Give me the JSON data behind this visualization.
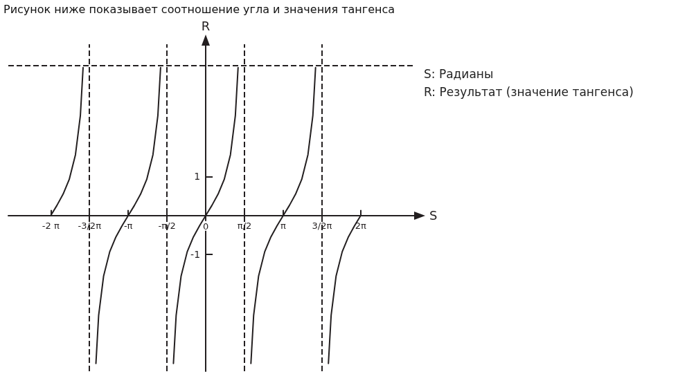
{
  "chart_data": {
    "type": "line",
    "title": "Рисунок ниже показывает соотношение угла и значения тангенса",
    "xlabel": "S",
    "ylabel": "R",
    "annotations": [
      "S: Радианы",
      "R: Результат (значение тангенса)"
    ],
    "xlim": [
      -8,
      8.5
    ],
    "ylim": [
      -4,
      4.4
    ],
    "xticks": [
      {
        "value": -6.28,
        "label": "-2 π"
      },
      {
        "value": -4.71,
        "label": "-3/2π"
      },
      {
        "value": -3.14,
        "label": "-π"
      },
      {
        "value": -1.57,
        "label": "-π/2"
      },
      {
        "value": 0,
        "label": "0"
      },
      {
        "value": 1.57,
        "label": "π/2"
      },
      {
        "value": 3.14,
        "label": "π"
      },
      {
        "value": 4.71,
        "label": "3/2π"
      },
      {
        "value": 6.28,
        "label": "2π"
      }
    ],
    "yticks": [
      -1,
      1
    ],
    "grid": false,
    "marker": "none",
    "line_style": "solid",
    "ref_lines": [
      {
        "axis": "y",
        "value": 3.85,
        "line_style": "dashed"
      },
      {
        "axis": "x",
        "value": -4.71,
        "line_style": "dashed"
      },
      {
        "axis": "x",
        "value": -1.57,
        "line_style": "dashed"
      },
      {
        "axis": "x",
        "value": 1.57,
        "line_style": "dashed"
      },
      {
        "axis": "x",
        "value": 4.71,
        "line_style": "dashed"
      }
    ],
    "series": [
      {
        "color": "#231f20",
        "x": [
          -6.28,
          -6.03,
          -5.78,
          -5.53,
          -5.28,
          -5.08,
          -4.97
        ],
        "values": [
          0,
          0.26,
          0.55,
          0.93,
          1.56,
          2.57,
          3.8
        ]
      },
      {
        "color": "#231f20",
        "x": [
          -4.45,
          -4.34,
          -4.14,
          -3.89,
          -3.64,
          -3.39,
          -3.14,
          -2.89,
          -2.64,
          -2.39,
          -2.14,
          -1.94,
          -1.83
        ],
        "values": [
          -3.8,
          -2.57,
          -1.56,
          -0.93,
          -0.55,
          -0.26,
          0,
          0.26,
          0.55,
          0.93,
          1.56,
          2.57,
          3.8
        ]
      },
      {
        "color": "#231f20",
        "x": [
          -1.31,
          -1.2,
          -1,
          -0.75,
          -0.5,
          -0.25,
          0,
          0.25,
          0.5,
          0.75,
          1,
          1.2,
          1.31
        ],
        "values": [
          -3.8,
          -2.57,
          -1.56,
          -0.93,
          -0.55,
          -0.26,
          0,
          0.26,
          0.55,
          0.93,
          1.56,
          2.57,
          3.8
        ]
      },
      {
        "color": "#231f20",
        "x": [
          1.83,
          1.94,
          2.14,
          2.39,
          2.64,
          2.89,
          3.14,
          3.39,
          3.64,
          3.89,
          4.14,
          4.34,
          4.45
        ],
        "values": [
          -3.8,
          -2.57,
          -1.56,
          -0.93,
          -0.55,
          -0.26,
          0,
          0.26,
          0.55,
          0.93,
          1.56,
          2.57,
          3.8
        ]
      },
      {
        "color": "#231f20",
        "x": [
          4.97,
          5.08,
          5.28,
          5.53,
          5.78,
          6.03,
          6.28
        ],
        "values": [
          -3.8,
          -2.57,
          -1.56,
          -0.93,
          -0.55,
          -0.26,
          0
        ]
      }
    ]
  }
}
